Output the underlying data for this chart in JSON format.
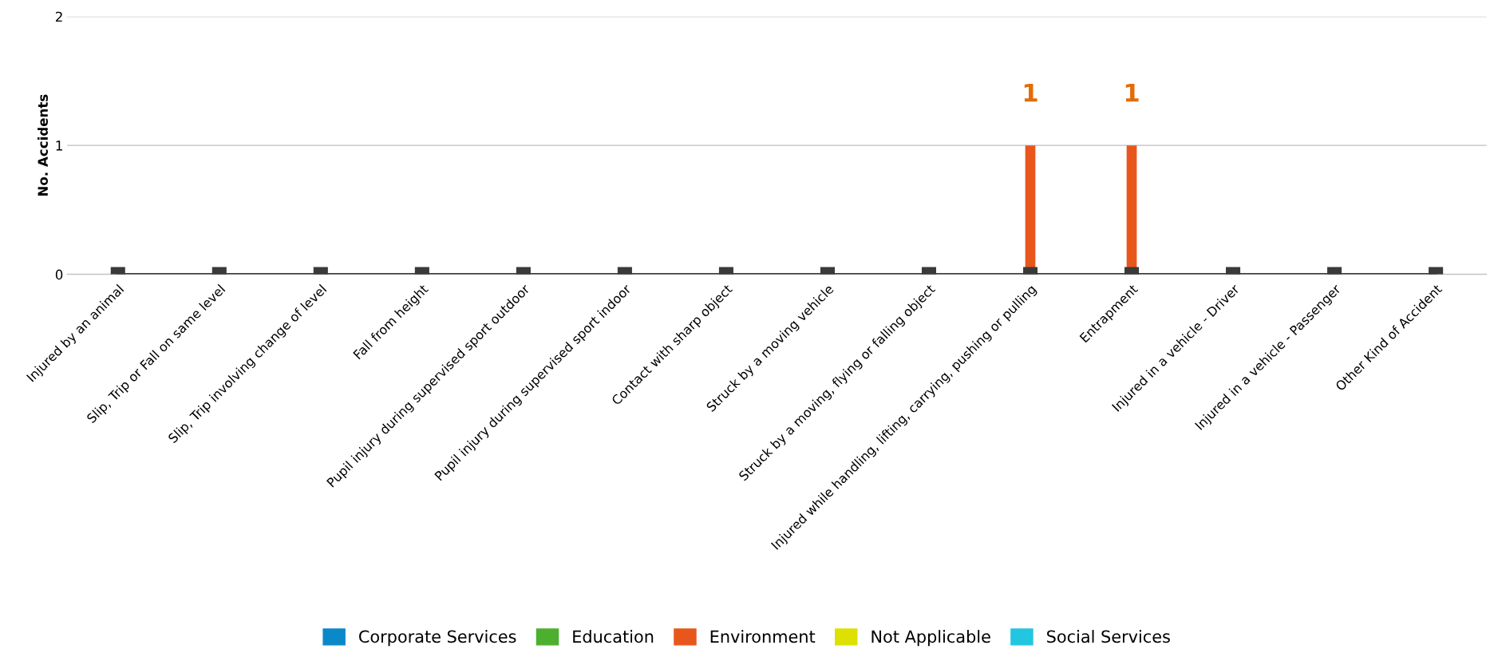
{
  "chart_data": {
    "type": "bar",
    "stacked": true,
    "ylabel": "No. Accidents",
    "categories": [
      "Injured by an animal",
      "Slip, Trip or Fall on same level",
      "Slip, Trip involving change of level",
      "Fall from height",
      "Pupil injury during supervised sport outdoor",
      "Pupil injury during supervised sport indoor",
      "Contact with sharp object",
      "Struck by a moving vehicle",
      "Struck by a moving, flying or falling object",
      "Injured while handling, lifting, carrying, pushing or pulling",
      "Entrapment",
      "Injured in a vehicle - Driver",
      "Injured in a vehicle - Passenger",
      "Other Kind of Accident"
    ],
    "series": [
      {
        "name": "Corporate Services",
        "color": "#0a88c8",
        "values": [
          0,
          0,
          0,
          0,
          0,
          0,
          0,
          0,
          0,
          0,
          0,
          0,
          0,
          0
        ]
      },
      {
        "name": "Education",
        "color": "#4caf2e",
        "values": [
          0,
          0,
          0,
          0,
          0,
          0,
          0,
          0,
          0,
          0,
          0,
          0,
          0,
          0
        ]
      },
      {
        "name": "Environment",
        "color": "#e9561c",
        "values": [
          0,
          0,
          0,
          0,
          0,
          0,
          0,
          0,
          0,
          1,
          1,
          0,
          0,
          0
        ],
        "value_labels": [
          null,
          null,
          null,
          null,
          null,
          null,
          null,
          null,
          null,
          "1",
          "1",
          null,
          null,
          null
        ]
      },
      {
        "name": "Not Applicable",
        "color": "#dde000",
        "values": [
          0,
          0,
          0,
          0,
          0,
          0,
          0,
          0,
          0,
          0,
          0,
          0,
          0,
          0
        ]
      },
      {
        "name": "Social Services",
        "color": "#22c6e0",
        "values": [
          0,
          0,
          0,
          0,
          0,
          0,
          0,
          0,
          0,
          0,
          0,
          0,
          0,
          0
        ]
      },
      {
        "type": "line",
        "color": "#3a3a3a",
        "marker": "square",
        "values": [
          0,
          0,
          0,
          0,
          0,
          0,
          0,
          0,
          0,
          0,
          0,
          0,
          0,
          0
        ]
      }
    ],
    "ylim": [
      0,
      2
    ],
    "yticks": [
      0,
      1,
      2
    ],
    "grid": "y",
    "legend": "bottom"
  }
}
